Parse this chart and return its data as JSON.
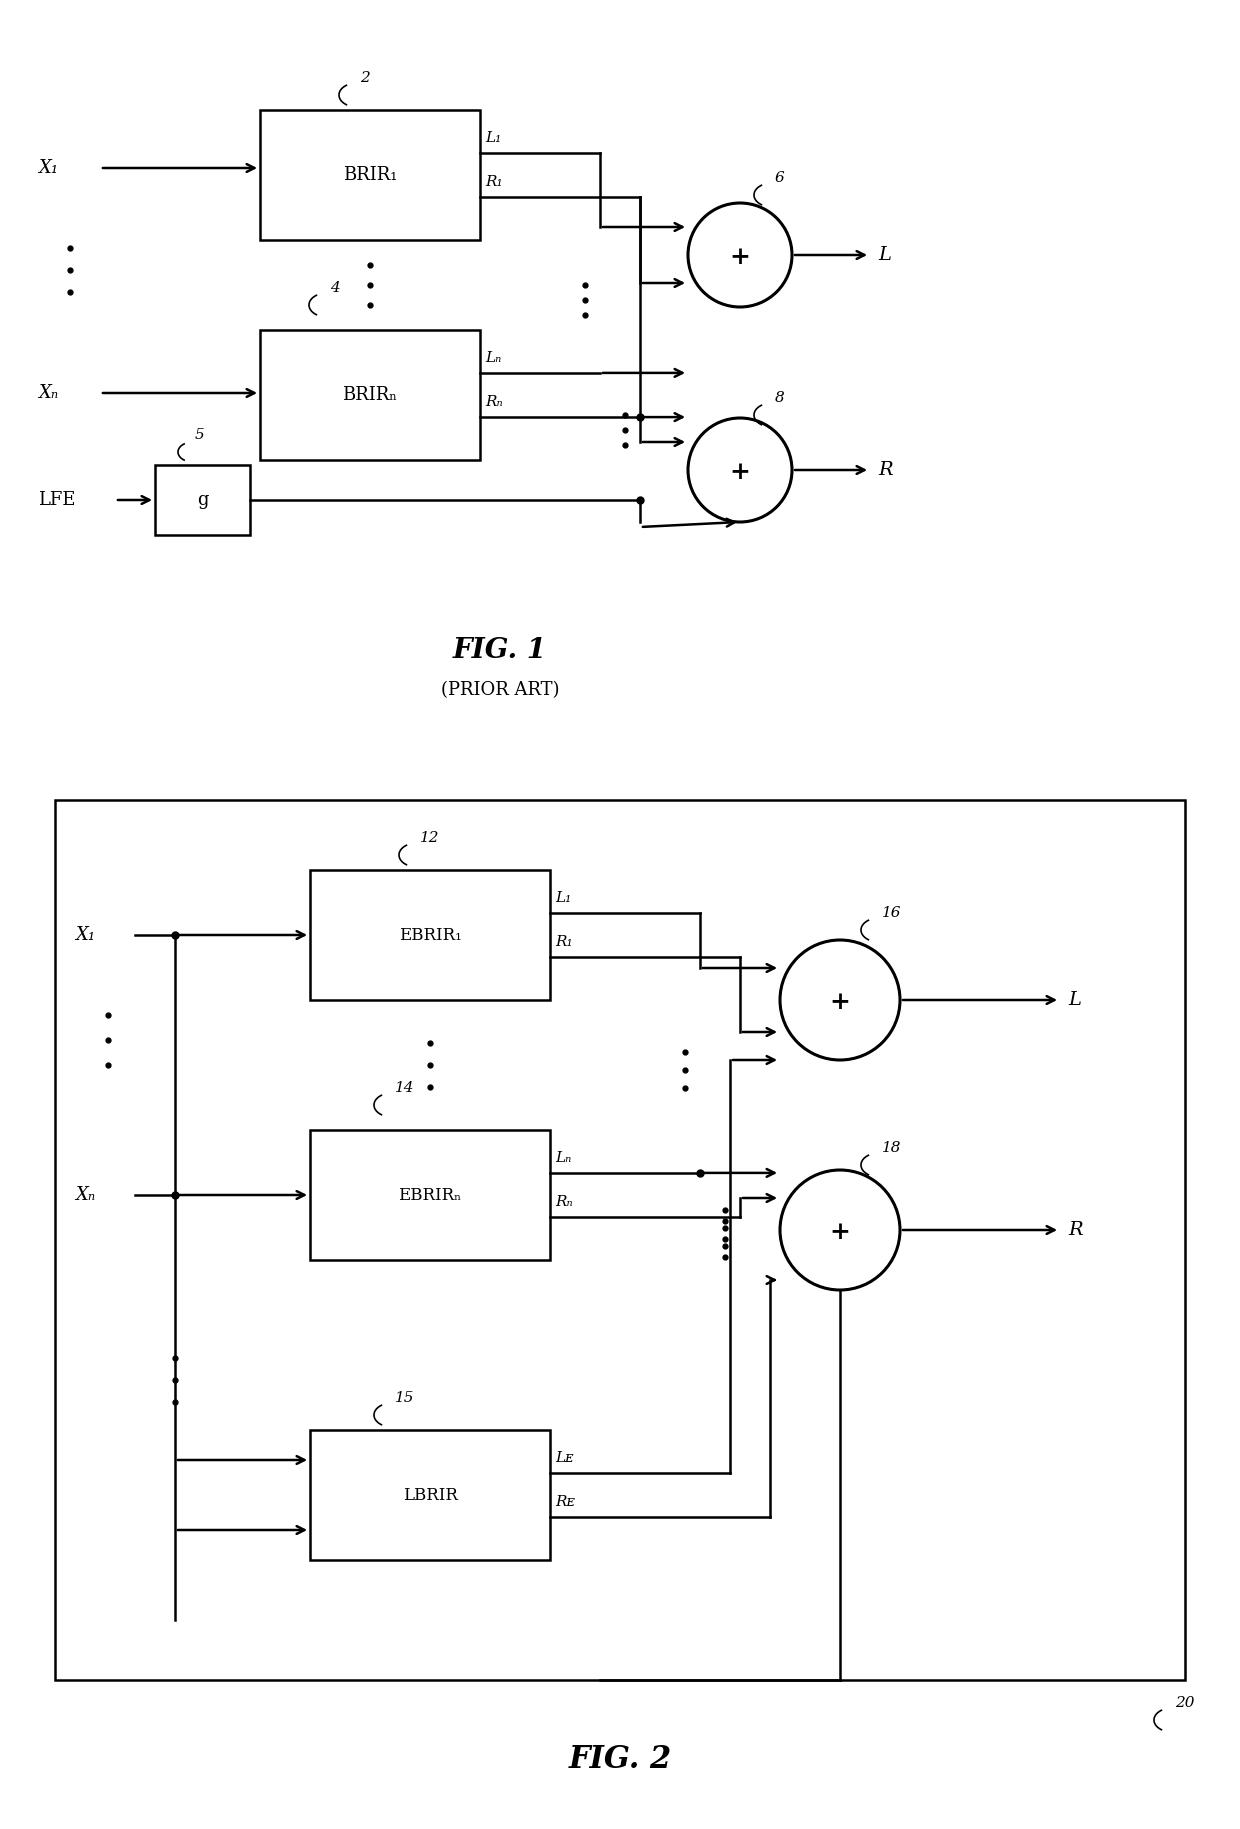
{
  "fig_width": 12.4,
  "fig_height": 18.29,
  "bg_color": "#ffffff",
  "line_color": "#000000",
  "fig1": {
    "title": "FIG. 1",
    "subtitle": "(PRIOR ART)",
    "brir1_label": "BRIR₁",
    "brir1_ref": "2",
    "brirN_label": "BRIRₙ",
    "brirN_ref": "4",
    "g_label": "g",
    "g_ref": "5",
    "sumL_ref": "6",
    "sumR_ref": "8",
    "x1_label": "X₁",
    "xN_label": "Xₙ",
    "lfe_label": "LFE",
    "L_label": "L",
    "R_label": "R",
    "L1_label": "L₁",
    "R1_label": "R₁",
    "LN_label": "Lₙ",
    "RN_label": "Rₙ"
  },
  "fig2": {
    "title": "FIG. 2",
    "ref": "20",
    "ebrir1_label": "EBRIR₁",
    "ebrir1_ref": "12",
    "ebrirN_label": "EBRIRₙ",
    "ebrirN_ref": "14",
    "lbrir_label": "LBRIR",
    "lbrir_ref": "15",
    "sumL_ref": "16",
    "sumR_ref": "18",
    "x1_label": "X₁",
    "xN_label": "Xₙ",
    "L_label": "L",
    "R_label": "R",
    "L1_label": "L₁",
    "R1_label": "R₁",
    "LN_label": "Lₙ",
    "RN_label": "Rₙ",
    "LE_label": "Lᴇ",
    "RE_label": "Rᴇ"
  }
}
